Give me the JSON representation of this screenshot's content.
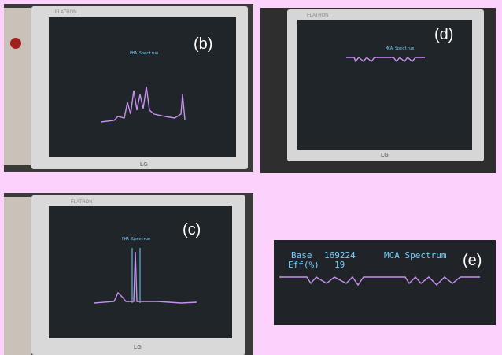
{
  "panels": [
    {
      "label": "(b)",
      "brand": "FLATRON",
      "logo": "LG",
      "screen_title": "PHA Spectrum"
    },
    {
      "label": "(d)",
      "brand": "FLATRON",
      "logo": "LG",
      "screen_title": "MCA Spectrum"
    },
    {
      "label": "(c)",
      "brand": "FLATRON",
      "logo": "LG",
      "screen_title": "PHA Spectrum"
    },
    {
      "label": "(e)",
      "screen_title": "MCA Spectrum",
      "base_label": "Base",
      "base_value": 169224,
      "eff_label": "Eff(%)",
      "eff_value": 19
    }
  ]
}
